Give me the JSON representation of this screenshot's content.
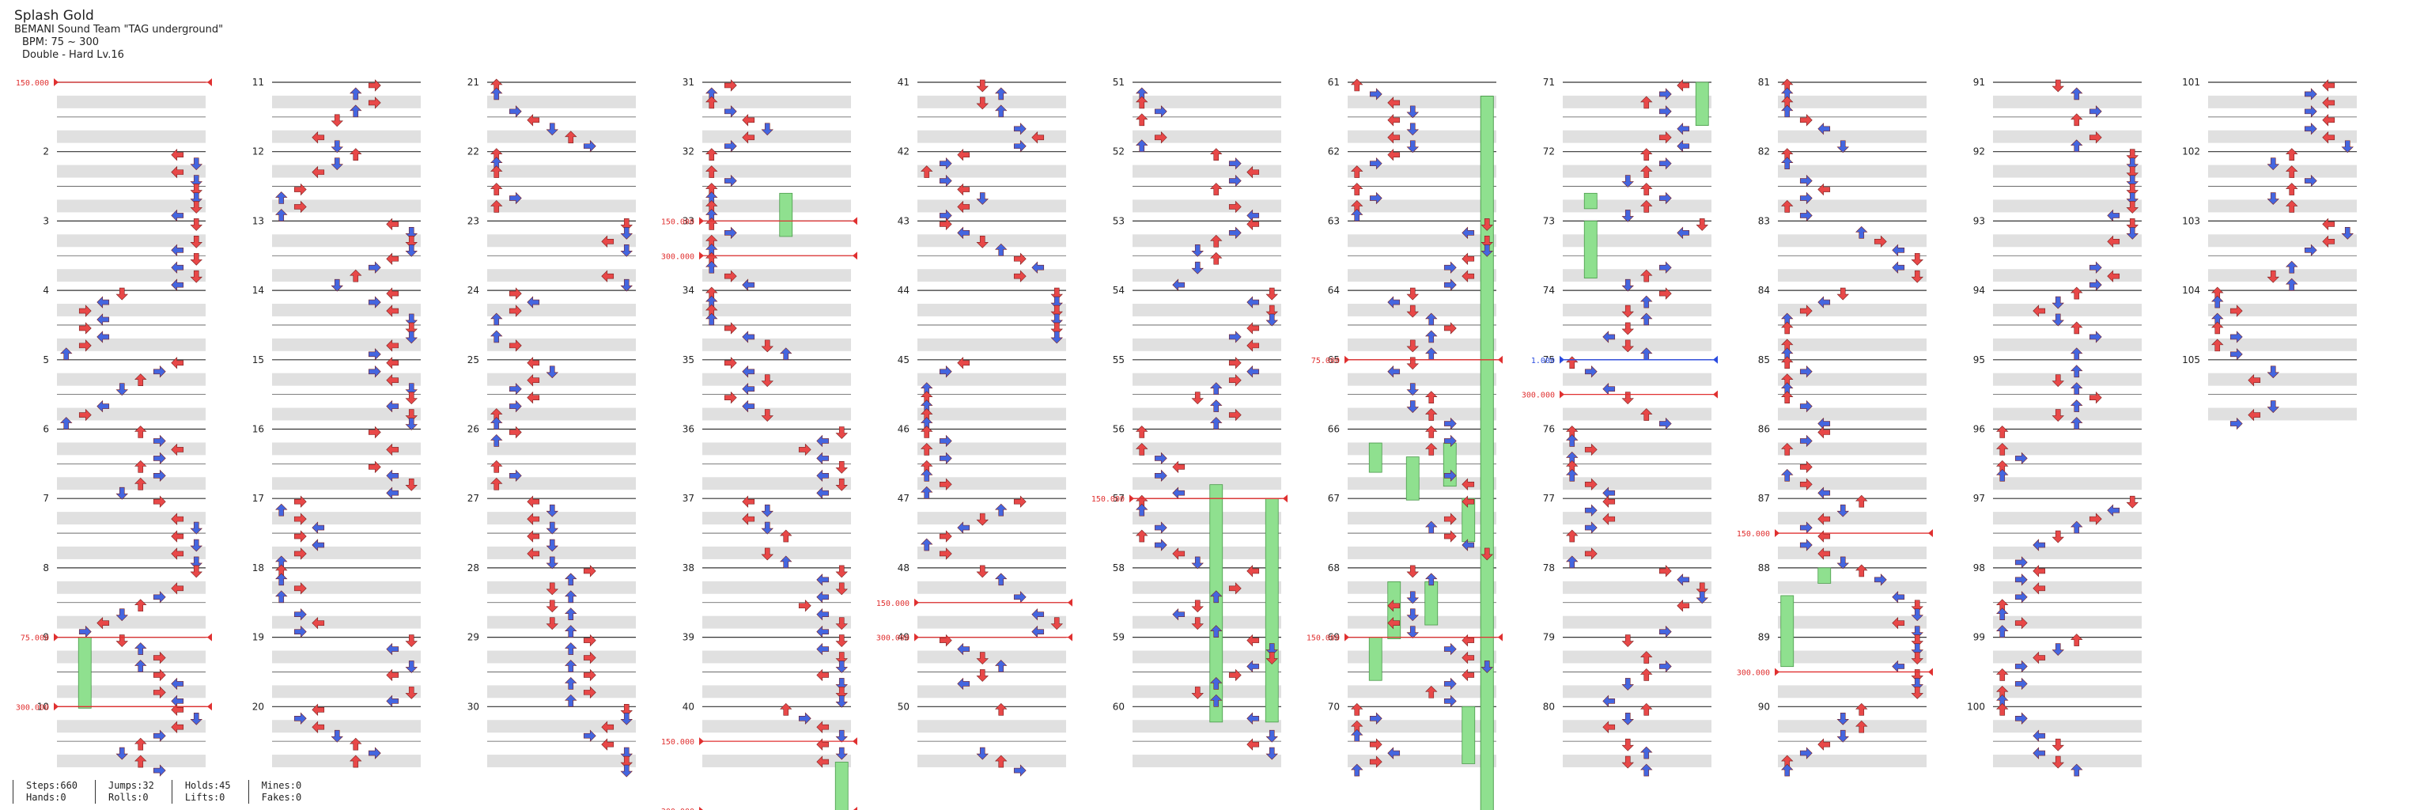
{
  "song": {
    "title": "Splash Gold",
    "artist": "BEMANI Sound Team \"TAG underground\"",
    "bpm": "BPM: 75 ~ 300",
    "chart": "Double - Hard Lv.16"
  },
  "colors": {
    "red": "#e84848",
    "blue": "#4466e0",
    "yellow": "#f2e04a",
    "hold": "#8fe08f",
    "band": "#e0e0e0",
    "bpm_change": "#e03030",
    "stop": "#2a4be0"
  },
  "stats": [
    [
      "Steps:660",
      "Hands:0"
    ],
    [
      "Jumps:32",
      "Rolls:0"
    ],
    [
      "Holds:45",
      "Lifts:0"
    ],
    [
      "Mines:0",
      "Fakes:0"
    ]
  ],
  "chart_data": {
    "type": "step-chart",
    "total_measures": 105,
    "columns": 11,
    "measures_per_column": 10,
    "panels": 8,
    "bpm_changes": [
      {
        "measure": 1.0,
        "label": "150.000"
      },
      {
        "measure": 9.0,
        "label": "75.000"
      },
      {
        "measure": 9.5,
        "label": "300.000"
      },
      {
        "measure": 33.0,
        "label": "150.000"
      },
      {
        "measure": 33.25,
        "label": "300.000"
      },
      {
        "measure": 40.25,
        "label": "150.000"
      },
      {
        "measure": 40.75,
        "label": "300.000"
      },
      {
        "measure": 48.25,
        "label": "150.000"
      },
      {
        "measure": 48.5,
        "label": "300.000"
      },
      {
        "measure": 56.5,
        "label": "150.000"
      },
      {
        "measure": 64.5,
        "label": "75.000"
      },
      {
        "measure": 68.5,
        "label": "150.000"
      },
      {
        "measure": 75.25,
        "label": "300.000"
      },
      {
        "measure": 87.25,
        "label": "150.000"
      },
      {
        "measure": 89.25,
        "label": "300.000"
      }
    ],
    "stops": [
      {
        "measure": 75.0,
        "label": "1.000"
      }
    ],
    "holds": [
      {
        "from": 9.0,
        "to": 9.5,
        "panel": 1
      },
      {
        "from": 32.3,
        "to": 32.6,
        "panel": 4
      },
      {
        "from": 40.4,
        "to": 40.8,
        "panel": 7
      },
      {
        "from": 56.4,
        "to": 60.1,
        "panel": 4
      },
      {
        "from": 56.5,
        "to": 60.1,
        "panel": 7
      },
      {
        "from": 65.8,
        "to": 66.1,
        "panel": 1
      },
      {
        "from": 65.6,
        "to": 65.9,
        "panel": 5
      },
      {
        "from": 66.2,
        "to": 66.5,
        "panel": 3
      },
      {
        "from": 66.5,
        "to": 66.8,
        "panel": 6
      },
      {
        "from": 67.6,
        "to": 67.9,
        "panel": 4
      },
      {
        "from": 68.1,
        "to": 68.5,
        "panel": 2
      },
      {
        "from": 69.0,
        "to": 69.3,
        "panel": 1
      },
      {
        "from": 70.0,
        "to": 70.4,
        "panel": 6
      },
      {
        "from": 70.8,
        "to": 71.1,
        "panel": 7
      },
      {
        "from": 70.9,
        "to": 71.1,
        "panel": 7
      },
      {
        "from": 71.0,
        "to": 71.3,
        "panel": 7
      },
      {
        "from": 71.8,
        "to": 72.4,
        "panel": 1
      },
      {
        "from": 72.5,
        "to": 72.9,
        "panel": 1
      },
      {
        "from": 87.6,
        "to": 88.0,
        "panel": 2
      },
      {
        "from": 88.2,
        "to": 88.7,
        "panel": 0
      }
    ]
  }
}
